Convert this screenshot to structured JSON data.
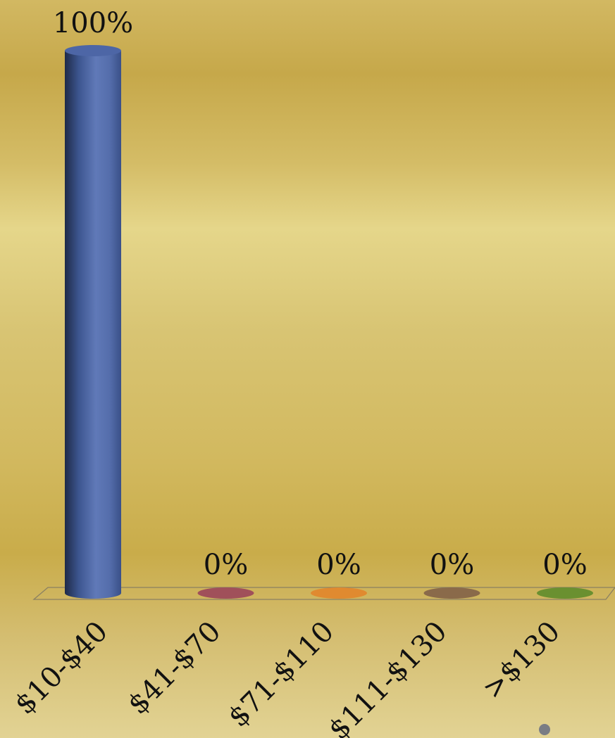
{
  "chart_data": {
    "type": "bar",
    "categories": [
      "$10-$40",
      "$41-$70",
      "$71-$110",
      "$111-$130",
      ">$130"
    ],
    "values": [
      100,
      0,
      0,
      0,
      0
    ],
    "data_labels": [
      "100%",
      "0%",
      "0%",
      "0%",
      "0%"
    ],
    "value_unit": "%",
    "ylim": [
      0,
      100
    ],
    "grid": false,
    "legend": "none",
    "colors": [
      "#5a74b0",
      "#a0505a",
      "#e08a30",
      "#8a6a4a",
      "#6a9030"
    ],
    "title": "",
    "xlabel": "",
    "ylabel": ""
  }
}
